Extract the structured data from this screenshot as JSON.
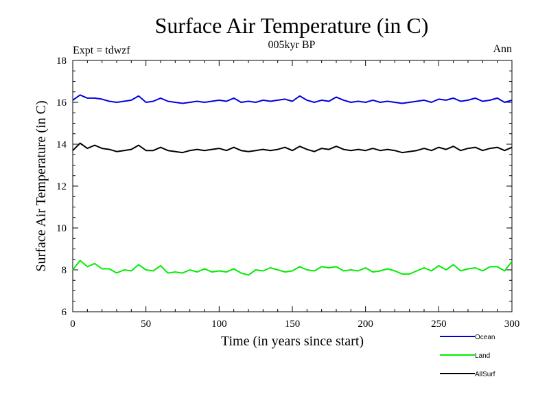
{
  "chart_data": {
    "type": "line",
    "title": "Surface Air Temperature (in C)",
    "subtitle": "005kyr BP",
    "left_note": "Expt = tdwzf",
    "right_note": "Ann",
    "xlabel": "Time (in years since start)",
    "ylabel": "Surface Air Temperature (in C)",
    "xlim": [
      0,
      300
    ],
    "ylim": [
      6,
      18
    ],
    "xticks": [
      0,
      50,
      100,
      150,
      200,
      250,
      300
    ],
    "yticks": [
      6,
      8,
      10,
      12,
      14,
      16,
      18
    ],
    "grid": false,
    "legend_position": "bottom-right, below plot",
    "series": [
      {
        "name": "Ocean",
        "color": "#0000dd",
        "x": [
          0,
          5,
          10,
          15,
          20,
          25,
          30,
          35,
          40,
          45,
          50,
          55,
          60,
          65,
          70,
          75,
          80,
          85,
          90,
          95,
          100,
          105,
          110,
          115,
          120,
          125,
          130,
          135,
          140,
          145,
          150,
          155,
          160,
          165,
          170,
          175,
          180,
          185,
          190,
          195,
          200,
          205,
          210,
          215,
          220,
          225,
          230,
          235,
          240,
          245,
          250,
          255,
          260,
          265,
          270,
          275,
          280,
          285,
          290,
          295,
          300
        ],
        "values": [
          16.1,
          16.35,
          16.2,
          16.2,
          16.15,
          16.05,
          16.0,
          16.05,
          16.1,
          16.3,
          16.0,
          16.05,
          16.2,
          16.05,
          16.0,
          15.95,
          16.0,
          16.05,
          16.0,
          16.05,
          16.1,
          16.05,
          16.2,
          16.0,
          16.05,
          16.0,
          16.1,
          16.05,
          16.1,
          16.15,
          16.05,
          16.3,
          16.1,
          16.0,
          16.1,
          16.05,
          16.25,
          16.1,
          16.0,
          16.05,
          16.0,
          16.1,
          16.0,
          16.05,
          16.0,
          15.95,
          16.0,
          16.05,
          16.1,
          16.0,
          16.15,
          16.1,
          16.2,
          16.05,
          16.1,
          16.2,
          16.05,
          16.1,
          16.2,
          16.0,
          16.1
        ]
      },
      {
        "name": "Land",
        "color": "#00ee00",
        "x": [
          0,
          5,
          10,
          15,
          20,
          25,
          30,
          35,
          40,
          45,
          50,
          55,
          60,
          65,
          70,
          75,
          80,
          85,
          90,
          95,
          100,
          105,
          110,
          115,
          120,
          125,
          130,
          135,
          140,
          145,
          150,
          155,
          160,
          165,
          170,
          175,
          180,
          185,
          190,
          195,
          200,
          205,
          210,
          215,
          220,
          225,
          230,
          235,
          240,
          245,
          250,
          255,
          260,
          265,
          270,
          275,
          280,
          285,
          290,
          295,
          300
        ],
        "values": [
          8.0,
          8.45,
          8.15,
          8.3,
          8.05,
          8.05,
          7.85,
          8.0,
          7.95,
          8.25,
          8.0,
          7.95,
          8.2,
          7.85,
          7.9,
          7.85,
          8.0,
          7.9,
          8.05,
          7.9,
          7.95,
          7.9,
          8.05,
          7.85,
          7.75,
          8.0,
          7.95,
          8.1,
          8.0,
          7.9,
          7.95,
          8.15,
          8.0,
          7.95,
          8.15,
          8.1,
          8.15,
          7.95,
          8.0,
          7.95,
          8.1,
          7.9,
          7.95,
          8.05,
          7.95,
          7.8,
          7.8,
          7.95,
          8.1,
          7.95,
          8.2,
          8.0,
          8.25,
          7.95,
          8.05,
          8.1,
          7.95,
          8.15,
          8.15,
          7.95,
          8.4
        ]
      },
      {
        "name": "AllSurf",
        "color": "#000000",
        "x": [
          0,
          5,
          10,
          15,
          20,
          25,
          30,
          35,
          40,
          45,
          50,
          55,
          60,
          65,
          70,
          75,
          80,
          85,
          90,
          95,
          100,
          105,
          110,
          115,
          120,
          125,
          130,
          135,
          140,
          145,
          150,
          155,
          160,
          165,
          170,
          175,
          180,
          185,
          190,
          195,
          200,
          205,
          210,
          215,
          220,
          225,
          230,
          235,
          240,
          245,
          250,
          255,
          260,
          265,
          270,
          275,
          280,
          285,
          290,
          295,
          300
        ],
        "values": [
          13.7,
          14.05,
          13.8,
          13.95,
          13.8,
          13.75,
          13.65,
          13.7,
          13.75,
          13.95,
          13.7,
          13.7,
          13.85,
          13.7,
          13.65,
          13.6,
          13.7,
          13.75,
          13.7,
          13.75,
          13.8,
          13.7,
          13.85,
          13.7,
          13.65,
          13.7,
          13.75,
          13.7,
          13.75,
          13.85,
          13.7,
          13.9,
          13.75,
          13.65,
          13.8,
          13.75,
          13.9,
          13.75,
          13.7,
          13.75,
          13.7,
          13.8,
          13.7,
          13.75,
          13.7,
          13.6,
          13.65,
          13.7,
          13.8,
          13.7,
          13.85,
          13.75,
          13.9,
          13.7,
          13.8,
          13.85,
          13.7,
          13.8,
          13.85,
          13.7,
          13.85
        ]
      }
    ]
  }
}
